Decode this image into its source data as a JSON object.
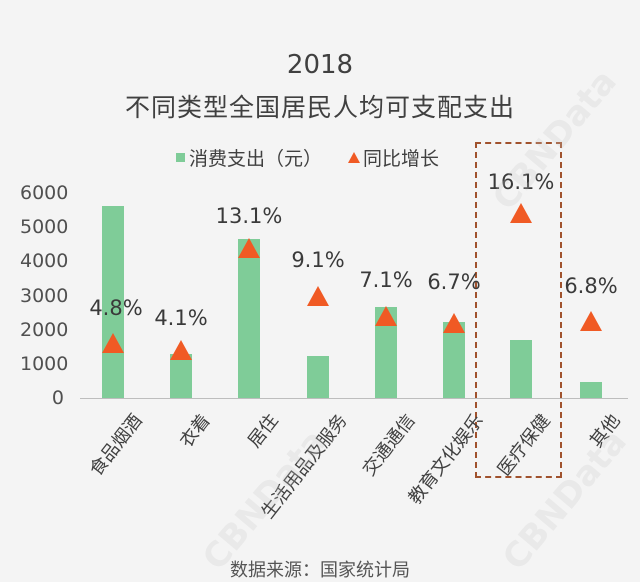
{
  "chart_data": {
    "type": "bar",
    "title": "2018",
    "subtitle": "不同类型全国居民人均可支配支出",
    "categories": [
      "食品烟酒",
      "衣着",
      "居住",
      "生活用品及服务",
      "交通通信",
      "教育文化娱乐",
      "医疗保健",
      "其他"
    ],
    "series": [
      {
        "name": "消费支出（元）",
        "type": "bar",
        "color": "#7fcc98",
        "values": [
          5631,
          1289,
          4647,
          1223,
          2675,
          2226,
          1685,
          477
        ]
      },
      {
        "name": "同比增长",
        "type": "marker-triangle",
        "color": "#f05a24",
        "values": [
          4.8,
          4.1,
          13.1,
          9.1,
          7.1,
          6.7,
          16.1,
          6.8
        ],
        "labels": [
          "4.8%",
          "4.1%",
          "13.1%",
          "9.1%",
          "7.1%",
          "6.7%",
          "16.1%",
          "6.8%"
        ]
      }
    ],
    "yticks": [
      "6000",
      "5000",
      "4000",
      "3000",
      "2000",
      "1000",
      "0"
    ],
    "ylim": [
      0,
      6000
    ],
    "grid": false,
    "legend_position": "top",
    "highlight": "医疗保健",
    "xlabel": "",
    "ylabel": ""
  },
  "legend": {
    "bar_label": "消费支出（元）",
    "marker_label": "同比增长"
  },
  "footer": {
    "source": "数据来源：国家统计局"
  },
  "watermark": "CBNData"
}
